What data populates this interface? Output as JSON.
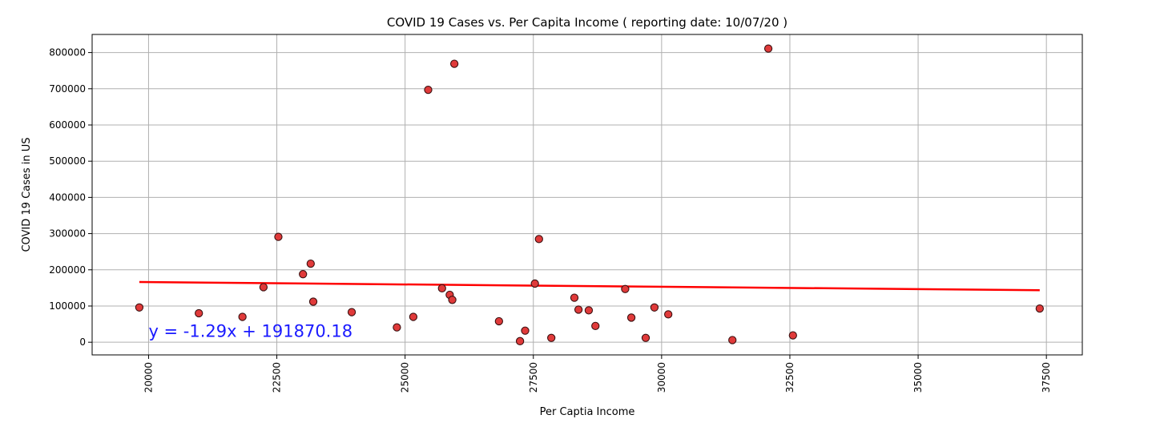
{
  "chart_data": {
    "type": "scatter",
    "title": "COVID 19 Cases vs. Per Capita Income ( reporting date: 10/07/20 )",
    "xlabel": "Per Captia Income",
    "ylabel": "COVID 19 Cases in US",
    "xlim": [
      18900,
      38200
    ],
    "ylim": [
      -35000,
      850000
    ],
    "x_ticks": [
      20000,
      22500,
      25000,
      27500,
      30000,
      32500,
      35000,
      37500
    ],
    "y_ticks": [
      0,
      100000,
      200000,
      300000,
      400000,
      500000,
      600000,
      700000,
      800000
    ],
    "x_tick_labels": [
      "20000",
      "22500",
      "25000",
      "27500",
      "30000",
      "32500",
      "35000",
      "37500"
    ],
    "y_tick_labels": [
      "0",
      "100000",
      "200000",
      "300000",
      "400000",
      "500000",
      "600000",
      "700000",
      "800000"
    ],
    "grid": true,
    "points": [
      {
        "x": 19820,
        "y": 96000
      },
      {
        "x": 20980,
        "y": 80000
      },
      {
        "x": 21830,
        "y": 70000
      },
      {
        "x": 22240,
        "y": 152000
      },
      {
        "x": 22530,
        "y": 291000
      },
      {
        "x": 23010,
        "y": 188000
      },
      {
        "x": 23160,
        "y": 217000
      },
      {
        "x": 23210,
        "y": 112000
      },
      {
        "x": 23960,
        "y": 83000
      },
      {
        "x": 24840,
        "y": 41000
      },
      {
        "x": 25160,
        "y": 70000
      },
      {
        "x": 25450,
        "y": 697000
      },
      {
        "x": 25720,
        "y": 149000
      },
      {
        "x": 25870,
        "y": 131000
      },
      {
        "x": 25920,
        "y": 117000
      },
      {
        "x": 25960,
        "y": 769000
      },
      {
        "x": 26830,
        "y": 58000
      },
      {
        "x": 27240,
        "y": 3000
      },
      {
        "x": 27340,
        "y": 32000
      },
      {
        "x": 27530,
        "y": 162000
      },
      {
        "x": 27610,
        "y": 285000
      },
      {
        "x": 27850,
        "y": 12000
      },
      {
        "x": 28300,
        "y": 123000
      },
      {
        "x": 28380,
        "y": 90000
      },
      {
        "x": 28580,
        "y": 88000
      },
      {
        "x": 28710,
        "y": 45000
      },
      {
        "x": 29290,
        "y": 147000
      },
      {
        "x": 29410,
        "y": 68000
      },
      {
        "x": 29690,
        "y": 12000
      },
      {
        "x": 29860,
        "y": 96000
      },
      {
        "x": 30130,
        "y": 77000
      },
      {
        "x": 31380,
        "y": 6000
      },
      {
        "x": 32080,
        "y": 811000
      },
      {
        "x": 32560,
        "y": 19000
      },
      {
        "x": 37370,
        "y": 93000
      }
    ],
    "regression": {
      "slope": -1.29,
      "intercept": 191870.18,
      "x_range": [
        19820,
        37370
      ],
      "equation": "y = -1.29x + 191870.18",
      "equation_anchor": {
        "x": 20000,
        "y": 15000
      }
    },
    "colors": {
      "marker_fill": "#e03a3a",
      "marker_edge": "#3a1010",
      "regression_line": "#ff0000",
      "annotation": "#1a1aff",
      "grid": "#b0b0b0",
      "frame": "#000000"
    }
  }
}
